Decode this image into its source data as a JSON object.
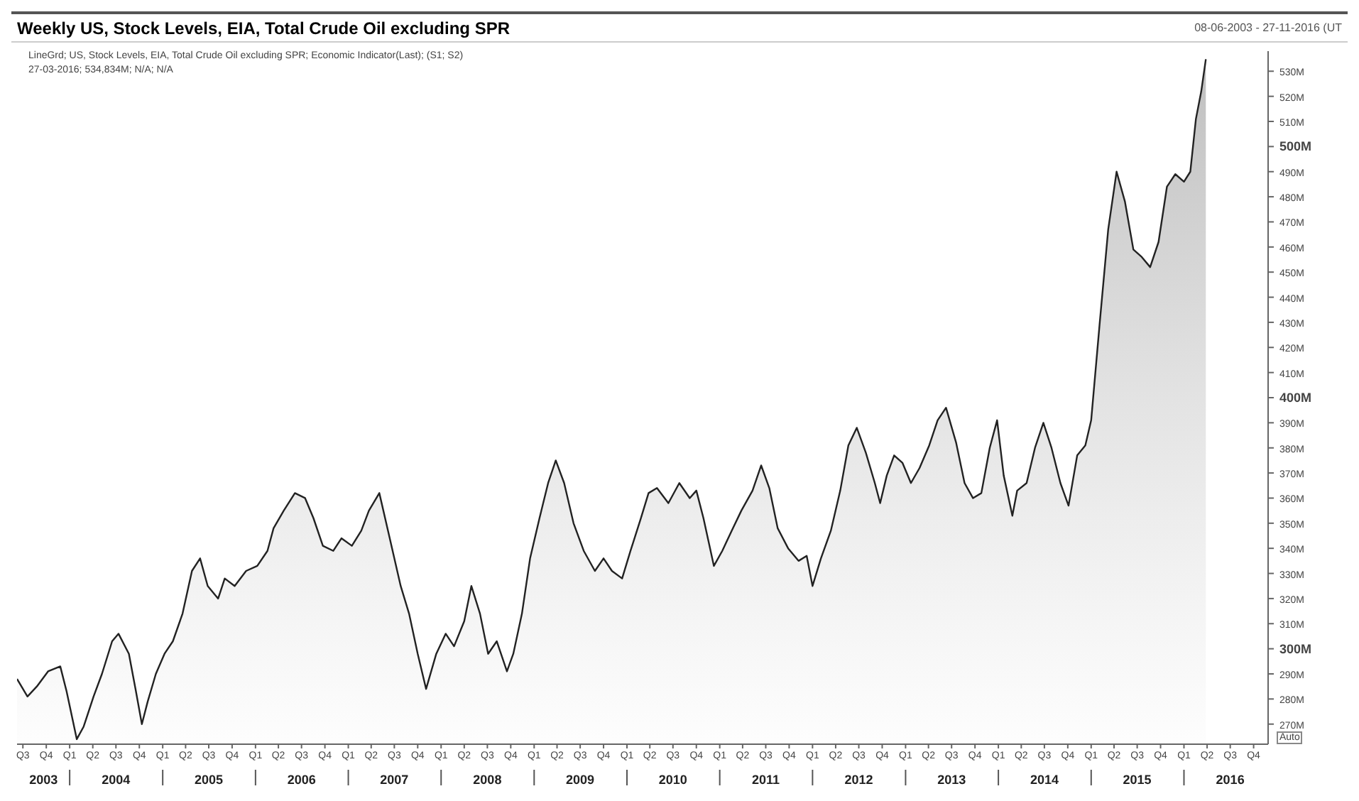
{
  "chart_data": {
    "type": "area",
    "title": "Weekly US, Stock Levels, EIA, Total Crude Oil excluding SPR",
    "annotations": [
      "LineGrd; US, Stock Levels, EIA, Total Crude Oil excluding SPR; Economic Indicator(Last); (S1; S2)",
      "27-03-2016; 534,834M; N/A; N/A",
      "08-06-2003 - 27-11-2016 (UT",
      "Auto"
    ],
    "x": [
      "2003-06-08",
      "2003-07-19",
      "2003-08-25",
      "2003-10-08",
      "2003-11-25",
      "2003-12-20",
      "2004-01-29",
      "2004-02-25",
      "2004-04-04",
      "2004-05-07",
      "2004-06-16",
      "2004-07-11",
      "2004-08-21",
      "2004-09-16",
      "2004-10-11",
      "2004-11-03",
      "2004-12-05",
      "2005-01-08",
      "2005-02-10",
      "2005-03-20",
      "2005-04-26",
      "2005-05-28",
      "2005-06-27",
      "2005-08-07",
      "2005-09-02",
      "2005-10-11",
      "2005-11-25",
      "2006-01-08",
      "2006-02-17",
      "2006-03-13",
      "2006-04-22",
      "2006-06-05",
      "2006-07-15",
      "2006-08-17",
      "2006-09-23",
      "2006-11-03",
      "2006-12-05",
      "2007-01-15",
      "2007-02-21",
      "2007-03-23",
      "2007-05-03",
      "2007-06-13",
      "2007-07-26",
      "2007-08-28",
      "2007-10-01",
      "2007-11-03",
      "2007-12-13",
      "2008-01-19",
      "2008-02-21",
      "2008-04-01",
      "2008-04-29",
      "2008-06-02",
      "2008-07-04",
      "2008-08-07",
      "2008-09-16",
      "2008-10-11",
      "2008-11-14",
      "2008-12-16",
      "2009-01-22",
      "2009-02-25",
      "2009-03-27",
      "2009-04-29",
      "2009-06-05",
      "2009-07-15",
      "2009-08-28",
      "2009-10-01",
      "2009-11-03",
      "2009-12-13",
      "2010-01-15",
      "2010-02-25",
      "2010-03-27",
      "2010-04-29",
      "2010-06-13",
      "2010-07-26",
      "2010-09-05",
      "2010-10-01",
      "2010-10-29",
      "2010-12-09",
      "2011-01-11",
      "2011-02-17",
      "2011-03-27",
      "2011-05-10",
      "2011-06-13",
      "2011-07-15",
      "2011-08-17",
      "2011-09-27",
      "2011-11-07",
      "2011-12-09",
      "2012-01-01",
      "2012-02-03",
      "2012-03-13",
      "2012-04-19",
      "2012-05-21",
      "2012-06-23",
      "2012-07-29",
      "2012-09-02",
      "2012-09-23",
      "2012-10-19",
      "2012-11-17",
      "2012-12-20",
      "2013-01-22",
      "2013-02-25",
      "2013-04-04",
      "2013-05-07",
      "2013-06-09",
      "2013-07-19",
      "2013-08-21",
      "2013-09-23",
      "2013-10-26",
      "2013-11-28",
      "2013-12-27",
      "2014-01-22",
      "2014-02-25",
      "2014-03-16",
      "2014-04-22",
      "2014-05-25",
      "2014-06-27",
      "2014-07-29",
      "2014-09-02",
      "2014-10-04",
      "2014-11-07",
      "2014-12-09",
      "2015-01-01",
      "2015-02-03",
      "2015-03-09",
      "2015-04-11",
      "2015-05-14",
      "2015-06-16",
      "2015-07-19",
      "2015-08-21",
      "2015-09-23",
      "2015-10-26",
      "2015-11-28",
      "2016-01-01",
      "2016-01-26",
      "2016-02-17",
      "2016-03-09",
      "2016-03-27"
    ],
    "series": [
      {
        "color": "#222222",
        "values": [
          288,
          281,
          285,
          291,
          293,
          283,
          264,
          269,
          281,
          290,
          303,
          306,
          298,
          284,
          270,
          279,
          290,
          298,
          303,
          314,
          331,
          336,
          325,
          320,
          328,
          325,
          331,
          333,
          339,
          348,
          355,
          362,
          360,
          352,
          341,
          339,
          344,
          341,
          347,
          355,
          362,
          344,
          325,
          314,
          298,
          284,
          298,
          306,
          301,
          311,
          325,
          314,
          298,
          303,
          291,
          298,
          314,
          336,
          352,
          366,
          375,
          366,
          350,
          339,
          331,
          336,
          331,
          328,
          339,
          352,
          362,
          364,
          358,
          366,
          360,
          363,
          352,
          333,
          339,
          347,
          355,
          363,
          373,
          364,
          348,
          340,
          335,
          337,
          325,
          336,
          347,
          363,
          381,
          388,
          378,
          366,
          358,
          369,
          377,
          374,
          366,
          372,
          381,
          391,
          396,
          382,
          366,
          360,
          362,
          380,
          391,
          369,
          353,
          363,
          366,
          380,
          390,
          380,
          366,
          357,
          377,
          381,
          391,
          429,
          467,
          490,
          478,
          459,
          456,
          452,
          462,
          484,
          489,
          486,
          490,
          511,
          522,
          534.8
        ]
      }
    ],
    "xlim": [
      "2003-06-08",
      "2016-11-27"
    ],
    "ylim": [
      262,
      538
    ],
    "xticks": [
      {
        "value": "2003-07",
        "label": "Q3"
      },
      {
        "value": "2003-10",
        "label": "Q4"
      },
      {
        "value": "2004-01",
        "label": "Q1"
      },
      {
        "value": "2004-04",
        "label": "Q2"
      },
      {
        "value": "2004-07",
        "label": "Q3"
      },
      {
        "value": "2004-10",
        "label": "Q4"
      },
      {
        "value": "2005-01",
        "label": "Q1"
      },
      {
        "value": "2005-04",
        "label": "Q2"
      },
      {
        "value": "2005-07",
        "label": "Q3"
      },
      {
        "value": "2005-10",
        "label": "Q4"
      },
      {
        "value": "2006-01",
        "label": "Q1"
      },
      {
        "value": "2006-04",
        "label": "Q2"
      },
      {
        "value": "2006-07",
        "label": "Q3"
      },
      {
        "value": "2006-10",
        "label": "Q4"
      },
      {
        "value": "2007-01",
        "label": "Q1"
      },
      {
        "value": "2007-04",
        "label": "Q2"
      },
      {
        "value": "2007-07",
        "label": "Q3"
      },
      {
        "value": "2007-10",
        "label": "Q4"
      },
      {
        "value": "2008-01",
        "label": "Q1"
      },
      {
        "value": "2008-04",
        "label": "Q2"
      },
      {
        "value": "2008-07",
        "label": "Q3"
      },
      {
        "value": "2008-10",
        "label": "Q4"
      },
      {
        "value": "2009-01",
        "label": "Q1"
      },
      {
        "value": "2009-04",
        "label": "Q2"
      },
      {
        "value": "2009-07",
        "label": "Q3"
      },
      {
        "value": "2009-10",
        "label": "Q4"
      },
      {
        "value": "2010-01",
        "label": "Q1"
      },
      {
        "value": "2010-04",
        "label": "Q2"
      },
      {
        "value": "2010-07",
        "label": "Q3"
      },
      {
        "value": "2010-10",
        "label": "Q4"
      },
      {
        "value": "2011-01",
        "label": "Q1"
      },
      {
        "value": "2011-04",
        "label": "Q2"
      },
      {
        "value": "2011-07",
        "label": "Q3"
      },
      {
        "value": "2011-10",
        "label": "Q4"
      },
      {
        "value": "2012-01",
        "label": "Q1"
      },
      {
        "value": "2012-04",
        "label": "Q2"
      },
      {
        "value": "2012-07",
        "label": "Q3"
      },
      {
        "value": "2012-10",
        "label": "Q4"
      },
      {
        "value": "2013-01",
        "label": "Q1"
      },
      {
        "value": "2013-04",
        "label": "Q2"
      },
      {
        "value": "2013-07",
        "label": "Q3"
      },
      {
        "value": "2013-10",
        "label": "Q4"
      },
      {
        "value": "2014-01",
        "label": "Q1"
      },
      {
        "value": "2014-04",
        "label": "Q2"
      },
      {
        "value": "2014-07",
        "label": "Q3"
      },
      {
        "value": "2014-10",
        "label": "Q4"
      },
      {
        "value": "2015-01",
        "label": "Q1"
      },
      {
        "value": "2015-04",
        "label": "Q2"
      },
      {
        "value": "2015-07",
        "label": "Q3"
      },
      {
        "value": "2015-10",
        "label": "Q4"
      },
      {
        "value": "2016-01",
        "label": "Q1"
      },
      {
        "value": "2016-04",
        "label": "Q2"
      },
      {
        "value": "2016-07",
        "label": "Q3"
      },
      {
        "value": "2016-10",
        "label": "Q4"
      }
    ],
    "x2lim": [
      "2003-06-08",
      "2016-11-27"
    ],
    "x2ticks": [
      {
        "value": "2003-09-20",
        "label": "2003"
      },
      {
        "value": "2004-01-01",
        "label": null
      },
      {
        "value": "2004-07-01",
        "label": "2004"
      },
      {
        "value": "2005-01-01",
        "label": null
      },
      {
        "value": "2005-07-01",
        "label": "2005"
      },
      {
        "value": "2006-01-01",
        "label": null
      },
      {
        "value": "2006-07-01",
        "label": "2006"
      },
      {
        "value": "2007-01-01",
        "label": null
      },
      {
        "value": "2007-07-01",
        "label": "2007"
      },
      {
        "value": "2008-01-01",
        "label": null
      },
      {
        "value": "2008-07-01",
        "label": "2008"
      },
      {
        "value": "2009-01-01",
        "label": null
      },
      {
        "value": "2009-07-01",
        "label": "2009"
      },
      {
        "value": "2010-01-01",
        "label": null
      },
      {
        "value": "2010-07-01",
        "label": "2010"
      },
      {
        "value": "2011-01-01",
        "label": null
      },
      {
        "value": "2011-07-01",
        "label": "2011"
      },
      {
        "value": "2012-01-01",
        "label": null
      },
      {
        "value": "2012-07-01",
        "label": "2012"
      },
      {
        "value": "2013-01-01",
        "label": null
      },
      {
        "value": "2013-07-01",
        "label": "2013"
      },
      {
        "value": "2014-01-01",
        "label": null
      },
      {
        "value": "2014-07-01",
        "label": "2014"
      },
      {
        "value": "2015-01-01",
        "label": null
      },
      {
        "value": "2015-07-01",
        "label": "2015"
      },
      {
        "value": "2016-01-01",
        "label": null
      },
      {
        "value": "2016-07-01",
        "label": "2016"
      }
    ],
    "yticks": [
      {
        "value": 270,
        "label": "270M"
      },
      {
        "value": 280,
        "label": "280M"
      },
      {
        "value": 290,
        "label": "290M"
      },
      {
        "value": 300,
        "label": "300M"
      },
      {
        "value": 310,
        "label": "310M"
      },
      {
        "value": 320,
        "label": "320M"
      },
      {
        "value": 330,
        "label": "330M"
      },
      {
        "value": 340,
        "label": "340M"
      },
      {
        "value": 350,
        "label": "350M"
      },
      {
        "value": 360,
        "label": "360M"
      },
      {
        "value": 370,
        "label": "370M"
      },
      {
        "value": 380,
        "label": "380M"
      },
      {
        "value": 390,
        "label": "390M"
      },
      {
        "value": 400,
        "label": "400M"
      },
      {
        "value": 410,
        "label": "410M"
      },
      {
        "value": 420,
        "label": "420M"
      },
      {
        "value": 430,
        "label": "430M"
      },
      {
        "value": 440,
        "label": "440M"
      },
      {
        "value": 450,
        "label": "450M"
      },
      {
        "value": 460,
        "label": "460M"
      },
      {
        "value": 470,
        "label": "470M"
      },
      {
        "value": 480,
        "label": "480M"
      },
      {
        "value": 490,
        "label": "490M"
      },
      {
        "value": 500,
        "label": "500M"
      },
      {
        "value": 510,
        "label": "510M"
      },
      {
        "value": 520,
        "label": "520M"
      },
      {
        "value": 530,
        "label": "530M"
      }
    ],
    "grid": false,
    "legend": false,
    "marker": "none",
    "line_style": "solid"
  }
}
